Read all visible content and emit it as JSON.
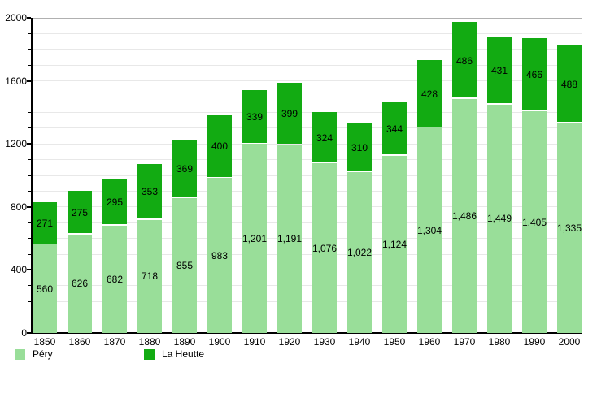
{
  "chart_data": {
    "type": "bar",
    "stacked": true,
    "title": "",
    "xlabel": "",
    "ylabel": "",
    "categories": [
      "1850",
      "1860",
      "1870",
      "1880",
      "1890",
      "1900",
      "1910",
      "1920",
      "1930",
      "1940",
      "1950",
      "1960",
      "1970",
      "1980",
      "1990",
      "2000"
    ],
    "series": [
      {
        "name": "Péry",
        "color": "#99DE99",
        "values": [
          560,
          626,
          682,
          718,
          855,
          983,
          1201,
          1191,
          1076,
          1022,
          1124,
          1304,
          1486,
          1449,
          1405,
          1335
        ]
      },
      {
        "name": "La Heutte",
        "color": "#12AB12",
        "values": [
          271,
          275,
          295,
          353,
          369,
          400,
          339,
          399,
          324,
          310,
          344,
          428,
          486,
          431,
          466,
          488
        ]
      }
    ],
    "ylim": [
      0,
      2000
    ],
    "y_major_ticks": [
      0,
      400,
      800,
      1200,
      1600,
      2000
    ],
    "y_tick_labels": [
      "0",
      "400",
      "800",
      "1200",
      "1600",
      "2000"
    ],
    "y_minor_step": 100,
    "grid": "horizontal-minor-and-major",
    "value_labels": "centered-in-segment",
    "legend_position": "bottom-left"
  },
  "colors": {
    "background": "#ffffff",
    "axis": "#000000",
    "gridline_minor": "#e8e8e8",
    "gridline_top": "#b0b0b0",
    "pery": "#99DE99",
    "la_heutte": "#12AB12",
    "label_text": "#000000"
  },
  "legend": {
    "items": [
      {
        "label": "Péry",
        "color": "#99DE99"
      },
      {
        "label": "La Heutte",
        "color": "#12AB12"
      }
    ]
  }
}
